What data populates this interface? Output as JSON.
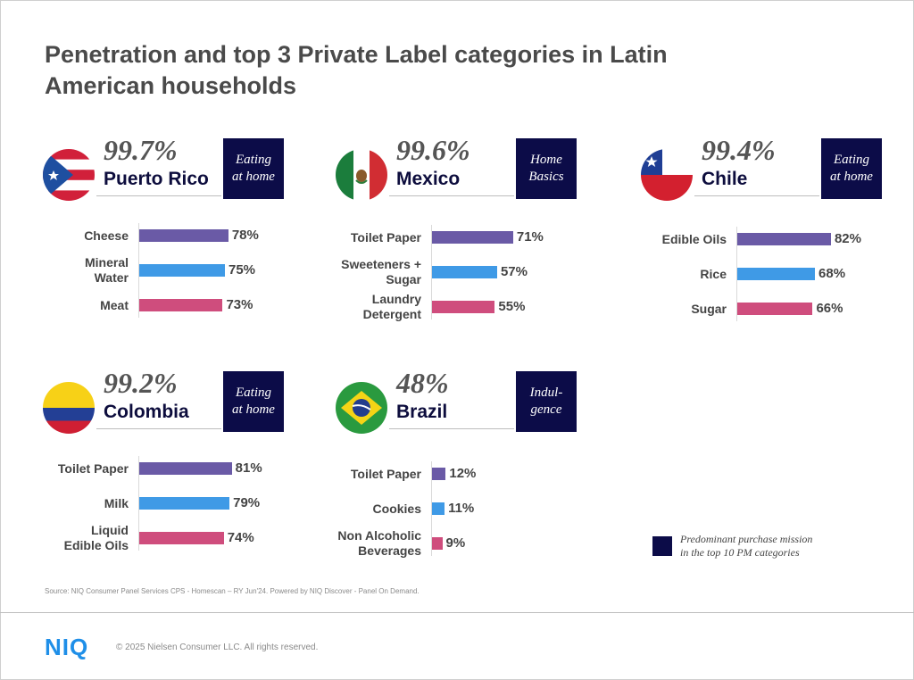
{
  "title": "Penetration and top 3 Private Label categories in Latin American households",
  "colors": {
    "rank1": "#6a5aa6",
    "rank2": "#3f9ae6",
    "rank3": "#cf4d7d",
    "mission_bg": "#0c0c48"
  },
  "chart_data": [
    {
      "type": "bar",
      "country": "Puerto Rico",
      "penetration": "99.7%",
      "mission": "Eating\nat home",
      "flag_icon": "puerto-rico-flag-icon",
      "categories": [
        "Cheese",
        "Mineral\nWater",
        "Meat"
      ],
      "values": [
        78,
        75,
        73
      ],
      "value_labels": [
        "78%",
        "75%",
        "73%"
      ]
    },
    {
      "type": "bar",
      "country": "Mexico",
      "penetration": "99.6%",
      "mission": "Home\nBasics",
      "flag_icon": "mexico-flag-icon",
      "categories": [
        "Toilet Paper",
        "Sweeteners +\nSugar",
        "Laundry\nDetergent"
      ],
      "values": [
        71,
        57,
        55
      ],
      "value_labels": [
        "71%",
        "57%",
        "55%"
      ]
    },
    {
      "type": "bar",
      "country": "Chile",
      "penetration": "99.4%",
      "mission": "Eating\nat home",
      "flag_icon": "chile-flag-icon",
      "categories": [
        "Edible Oils",
        "Rice",
        "Sugar"
      ],
      "values": [
        82,
        68,
        66
      ],
      "value_labels": [
        "82%",
        "68%",
        "66%"
      ]
    },
    {
      "type": "bar",
      "country": "Colombia",
      "penetration": "99.2%",
      "mission": "Eating\nat home",
      "flag_icon": "colombia-flag-icon",
      "categories": [
        "Toilet Paper",
        "Milk",
        "Liquid\nEdible Oils"
      ],
      "values": [
        81,
        79,
        74
      ],
      "value_labels": [
        "81%",
        "79%",
        "74%"
      ]
    },
    {
      "type": "bar",
      "country": "Brazil",
      "penetration": "48%",
      "mission": "Indul-\ngence",
      "flag_icon": "brazil-flag-icon",
      "categories": [
        "Toilet Paper",
        "Cookies",
        "Non Alcoholic\nBeverages"
      ],
      "values": [
        12,
        11,
        9
      ],
      "value_labels": [
        "12%",
        "11%",
        "9%"
      ]
    }
  ],
  "legend": {
    "text": "Predominant purchase mission\nin the top 10 PM categories"
  },
  "source": "Source: NIQ Consumer Panel Services CPS - Homescan – RY Jun'24. Powered by NIQ Discover - Panel On Demand.",
  "footer": {
    "logo": "NIQ",
    "copyright": "© 2025 Nielsen Consumer LLC. All rights reserved."
  }
}
